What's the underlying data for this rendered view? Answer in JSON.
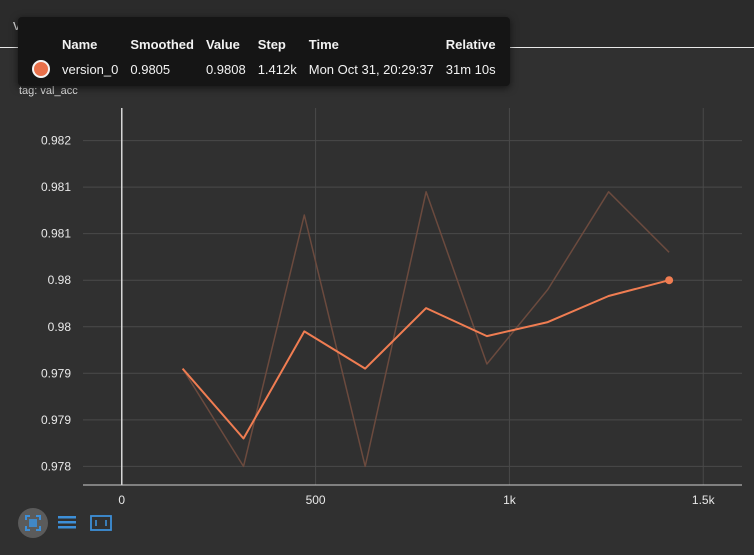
{
  "card": {
    "title": "val_acc",
    "subtitle": "val_acc",
    "tag": "tag: val_acc"
  },
  "tooltip": {
    "headers": [
      "Name",
      "Smoothed",
      "Value",
      "Step",
      "Time",
      "Relative"
    ],
    "row": {
      "name": "version_0",
      "smoothed": "0.9805",
      "value": "0.9808",
      "step": "1.412k",
      "time": "Mon Oct 31, 20:29:37",
      "relative": "31m 10s",
      "color": "#e8704a"
    }
  },
  "toolbar": {
    "icons": [
      "fit-domain-icon",
      "toggle-log-icon",
      "data-selection-icon"
    ],
    "accent": "#3d8fd8"
  },
  "chart_data": {
    "type": "line",
    "title": "val_acc",
    "x_ticks": [
      "0",
      "500",
      "1k",
      "1.5k"
    ],
    "x_tick_values": [
      0,
      500,
      1000,
      1500
    ],
    "y_ticks": [
      "0.982",
      "0.981",
      "0.981",
      "0.98",
      "0.98",
      "0.979",
      "0.979",
      "0.978"
    ],
    "y_tick_values": [
      0.982,
      0.9815,
      0.981,
      0.9805,
      0.98,
      0.9795,
      0.979,
      0.9785
    ],
    "xlim": [
      -100,
      1600
    ],
    "ylim": [
      0.9783,
      0.98235
    ],
    "grid": true,
    "series": [
      {
        "name": "version_0",
        "role": "raw",
        "color": "#6b4a3e",
        "x": [
          157,
          314,
          471,
          628,
          785,
          942,
          1099,
          1256,
          1412
        ],
        "y": [
          0.97955,
          0.9785,
          0.9812,
          0.9785,
          0.98145,
          0.9796,
          0.9804,
          0.98145,
          0.9808
        ]
      },
      {
        "name": "version_0",
        "role": "smoothed",
        "color": "#f07d52",
        "x": [
          157,
          314,
          471,
          628,
          785,
          942,
          1099,
          1256,
          1412
        ],
        "y": [
          0.97955,
          0.9788,
          0.97995,
          0.97955,
          0.9802,
          0.9799,
          0.98005,
          0.98033,
          0.9805
        ]
      }
    ]
  }
}
